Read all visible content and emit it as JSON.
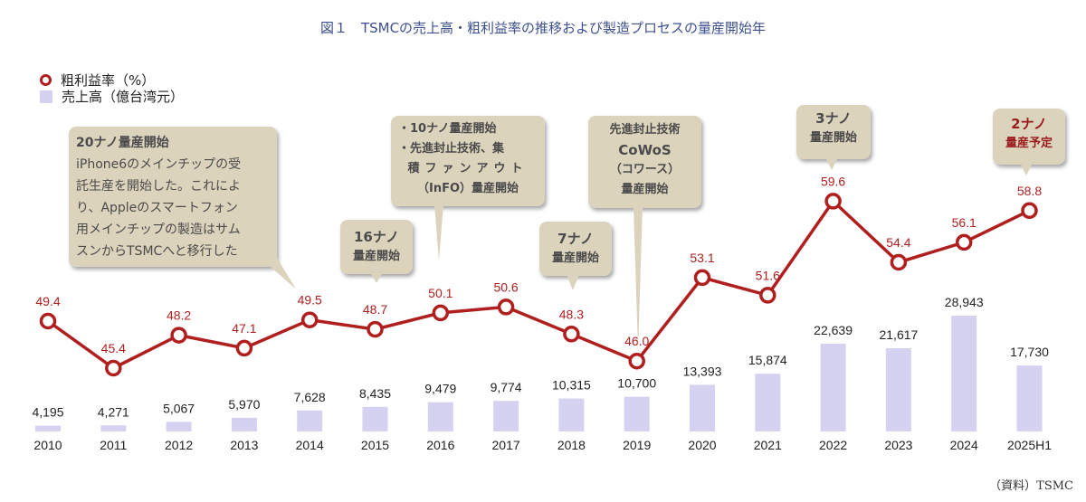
{
  "title": "図１　TSMCの売上高・粗利益率の推移および製造プロセスの量産開始年",
  "legend": {
    "margin": "粗利益率（%）",
    "revenue": "売上高（億台湾元）"
  },
  "source": "（資料）TSMC",
  "colors": {
    "line": "#b01e1e",
    "bar": "#d4d2f0",
    "callout": "#dcd3bd"
  },
  "callouts": [
    {
      "title": "20ナノ量産開始",
      "lines": [
        "iPhone6のメインチップの受",
        "託生産を開始した。これによ",
        "り、Appleのスマートフォン",
        "用メインチップの製造はサム",
        "スンからTSMCへと移行した"
      ]
    },
    {
      "lines": [
        "16ナノ",
        "量産開始"
      ]
    },
    {
      "lines": [
        "・10ナノ量産開始",
        "・先進封止技術、集",
        "積ファンアウト",
        "（InFO）量産開始"
      ]
    },
    {
      "lines": [
        "7ナノ",
        "量産開始"
      ]
    },
    {
      "lines": [
        "先進封止技術",
        "CoWoS",
        "（コワース）",
        "量産開始"
      ]
    },
    {
      "lines": [
        "3ナノ",
        "量産開始"
      ]
    },
    {
      "lines": [
        "2ナノ",
        "量産予定"
      ]
    }
  ],
  "chart_data": {
    "type": "bar+line",
    "categories": [
      "2010",
      "2011",
      "2012",
      "2013",
      "2014",
      "2015",
      "2016",
      "2017",
      "2018",
      "2019",
      "2020",
      "2021",
      "2022",
      "2023",
      "2024",
      "2025H1"
    ],
    "series": [
      {
        "name": "売上高（億台湾元）",
        "type": "bar",
        "values": [
          4195,
          4271,
          5067,
          5970,
          7628,
          8435,
          9479,
          9774,
          10315,
          10700,
          13393,
          15874,
          22639,
          21617,
          28943,
          17730
        ],
        "labels": [
          "4,195",
          "4,271",
          "5,067",
          "5,970",
          "7,628",
          "8,435",
          "9,479",
          "9,774",
          "10,315",
          "10,700",
          "13,393",
          "15,874",
          "22,639",
          "21,617",
          "28,943",
          "17,730"
        ]
      },
      {
        "name": "粗利益率（%）",
        "type": "line",
        "values": [
          49.4,
          45.4,
          48.2,
          47.1,
          49.5,
          48.7,
          50.1,
          50.6,
          48.3,
          46.0,
          53.1,
          51.6,
          59.6,
          54.4,
          56.1,
          58.8
        ],
        "labels": [
          "49.4",
          "45.4",
          "48.2",
          "47.1",
          "49.5",
          "48.7",
          "50.1",
          "50.6",
          "48.3",
          "46.0",
          "53.1",
          "51.6",
          "59.6",
          "54.4",
          "56.1",
          "58.8"
        ]
      }
    ]
  }
}
